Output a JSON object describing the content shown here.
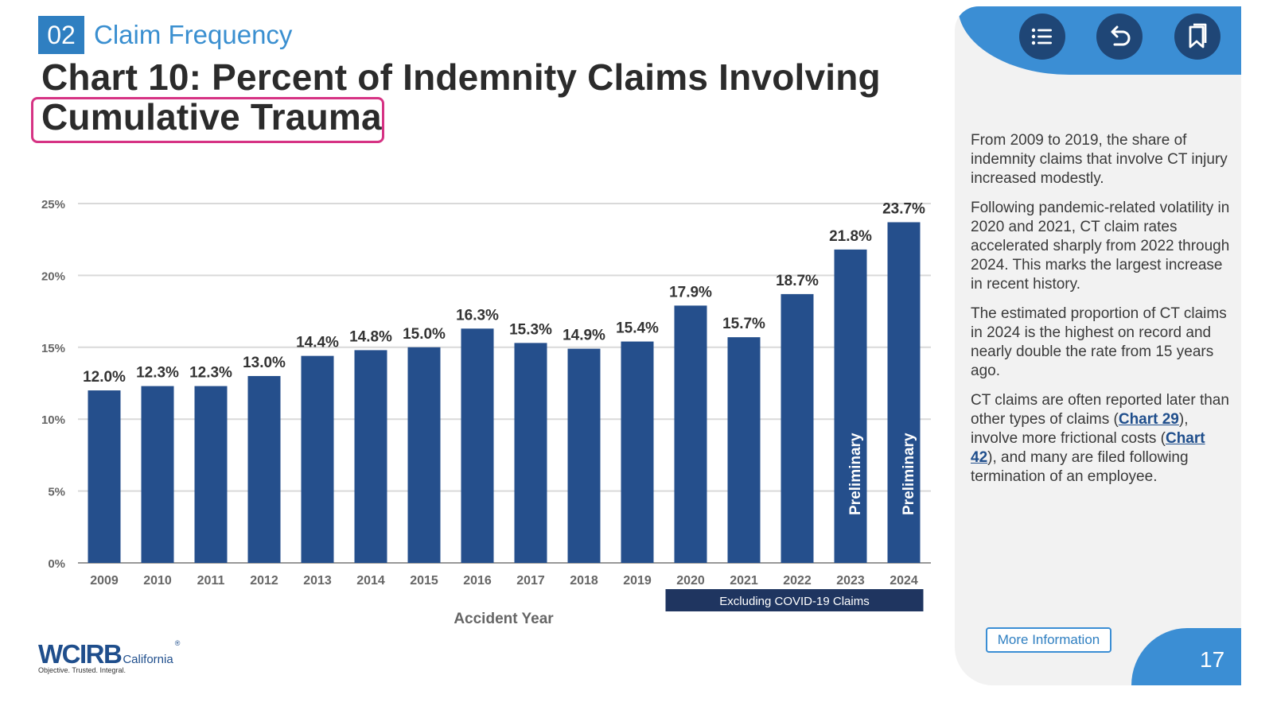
{
  "header": {
    "section_number": "02",
    "section_title": "Claim Frequency",
    "chart_title": "Chart 10: Percent of Indemnity Claims Involving Cumulative Trauma"
  },
  "chart_data": {
    "type": "bar",
    "categories": [
      "2009",
      "2010",
      "2011",
      "2012",
      "2013",
      "2014",
      "2015",
      "2016",
      "2017",
      "2018",
      "2019",
      "2020",
      "2021",
      "2022",
      "2023",
      "2024"
    ],
    "values": [
      12.0,
      12.3,
      12.3,
      13.0,
      14.4,
      14.8,
      15.0,
      16.3,
      15.3,
      14.9,
      15.4,
      17.9,
      15.7,
      18.7,
      21.8,
      23.7
    ],
    "value_labels": [
      "12.0%",
      "12.3%",
      "12.3%",
      "13.0%",
      "14.4%",
      "14.8%",
      "15.0%",
      "16.3%",
      "15.3%",
      "14.9%",
      "15.4%",
      "17.9%",
      "15.7%",
      "18.7%",
      "21.8%",
      "23.7%"
    ],
    "yticks": [
      0,
      5,
      10,
      15,
      20,
      25
    ],
    "ytick_labels": [
      "0%",
      "5%",
      "10%",
      "15%",
      "20%",
      "25%"
    ],
    "ylim": [
      0,
      25
    ],
    "xlabel": "Accident Year",
    "ylabel": "",
    "grid": true,
    "bar_color": "#254f8c",
    "bar_annotations": [
      {
        "category": "2023",
        "text": "Preliminary"
      },
      {
        "category": "2024",
        "text": "Preliminary"
      }
    ],
    "range_annotation": {
      "from": "2020",
      "to": "2024",
      "text": "Excluding COVID-19 Claims"
    }
  },
  "logo": {
    "name": "WCIRB",
    "suffix": "California",
    "trademark": "®",
    "tagline": "Objective. Trusted. Integral."
  },
  "sidebar": {
    "nav": [
      {
        "icon": "list-icon"
      },
      {
        "icon": "back-arrow-icon"
      },
      {
        "icon": "bookmark-icon"
      }
    ],
    "paragraph1": "From 2009 to 2019, the share of indemnity claims that involve CT injury increased modestly.",
    "paragraph2": "Following pandemic-related volatility in 2020 and 2021, CT claim rates accelerated sharply from 2022 through 2024. This marks the largest increase in recent history.",
    "paragraph3": "The estimated proportion of CT claims in 2024 is the highest on record and nearly double the rate from 15 years ago.",
    "paragraph4": {
      "part1": "CT claims are often reported later than other types of claims (",
      "link1": "Chart 29",
      "part2": "), involve more frictional costs (",
      "link2": "Chart 42",
      "part3": "), and many are filed following termination of an employee."
    },
    "more_info_label": "More Information",
    "page_number": "17"
  },
  "colors": {
    "accent": "#3b8ed4",
    "navy": "#1f4676",
    "bar": "#254f8c",
    "highlight": "#d63384"
  }
}
